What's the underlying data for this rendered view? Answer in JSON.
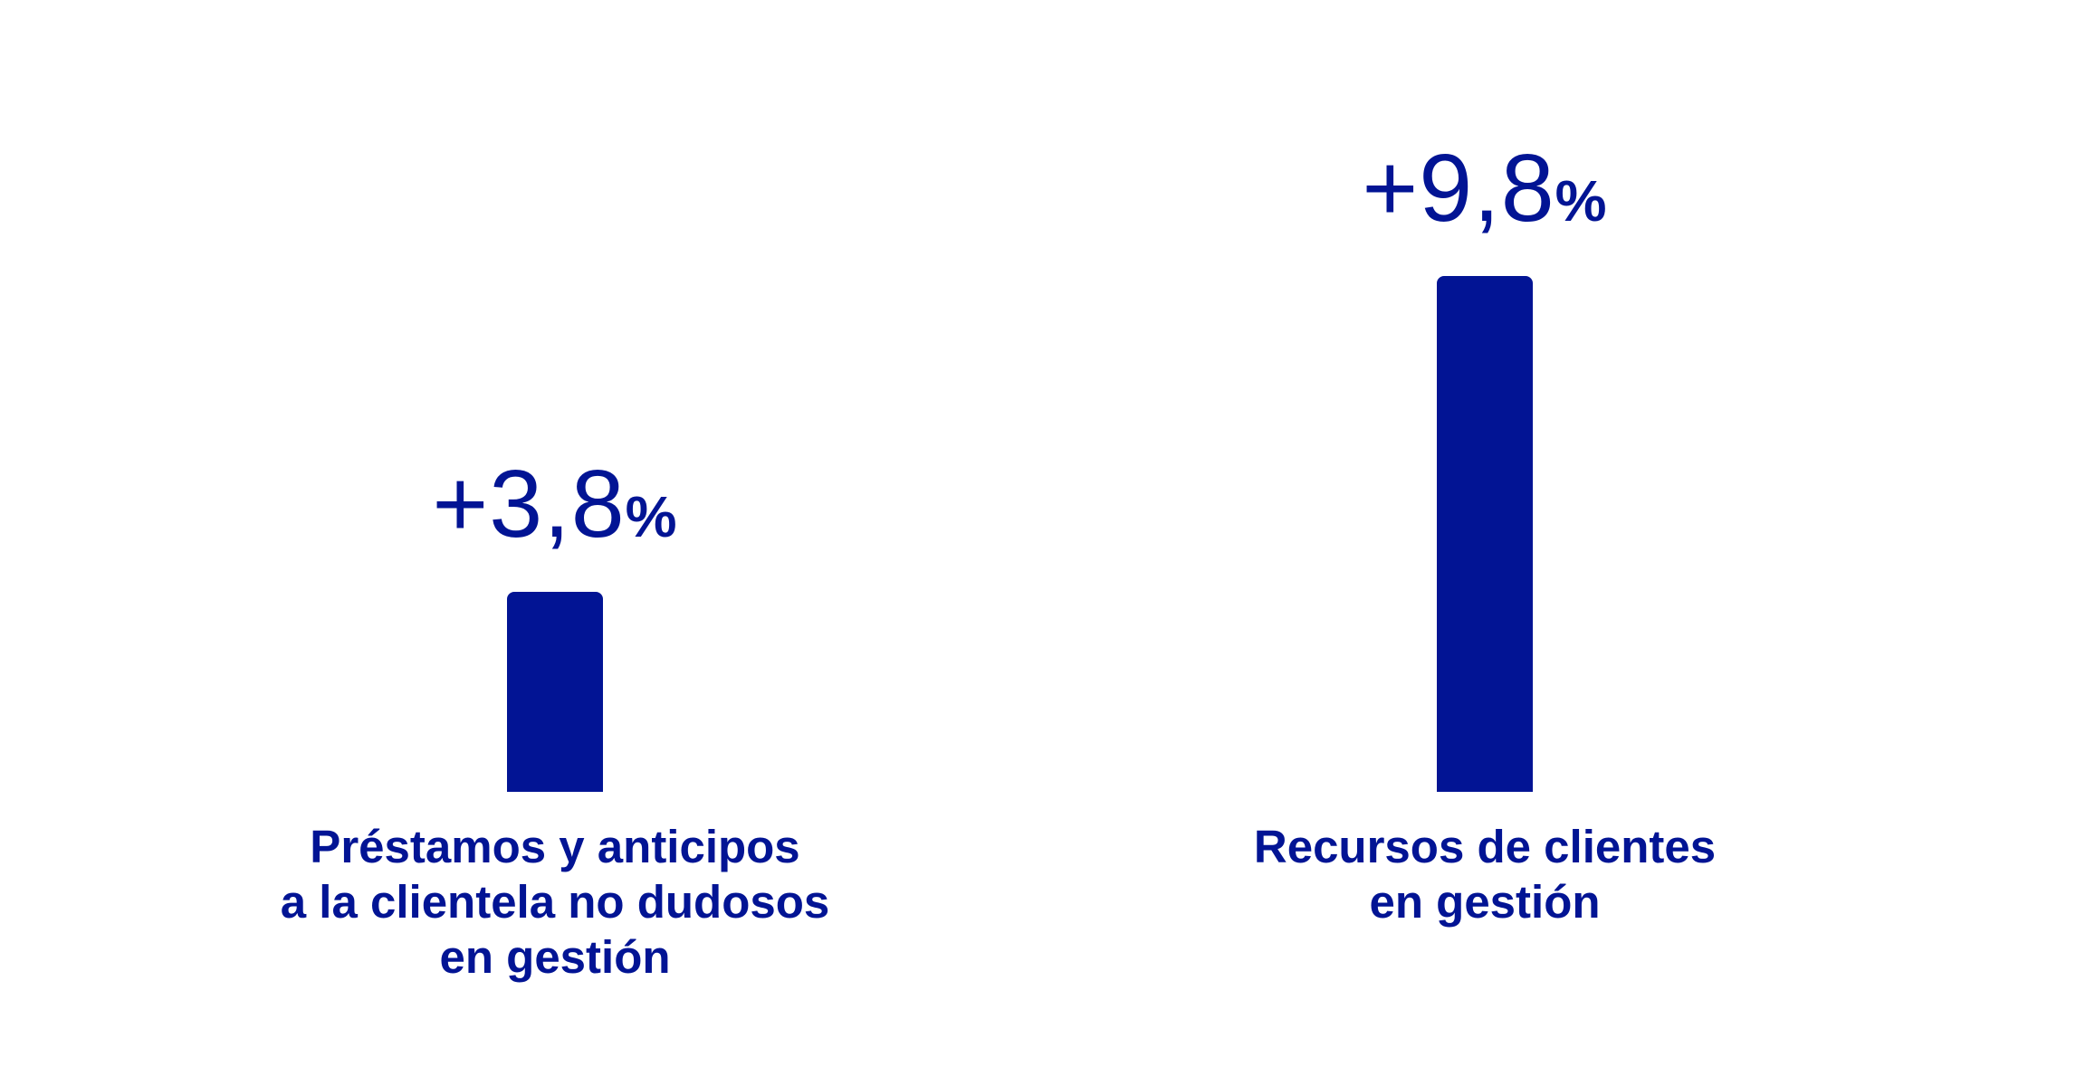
{
  "colors": {
    "bar": "#021494",
    "text": "#021494",
    "background": "#ffffff"
  },
  "chart_data": {
    "type": "bar",
    "categories": [
      [
        "Préstamos y anticipos",
        "a la clientela no dudosos",
        "en gestión"
      ],
      [
        "Recursos de clientes",
        "en gestión"
      ]
    ],
    "values": [
      3.8,
      9.8
    ],
    "value_labels": [
      {
        "number": "+3,8",
        "unit": "%"
      },
      {
        "number": "+9,8",
        "unit": "%"
      }
    ],
    "title": "",
    "xlabel": "",
    "ylabel": "",
    "ylim": [
      0,
      9.8
    ],
    "grid": false,
    "legend": "none"
  }
}
